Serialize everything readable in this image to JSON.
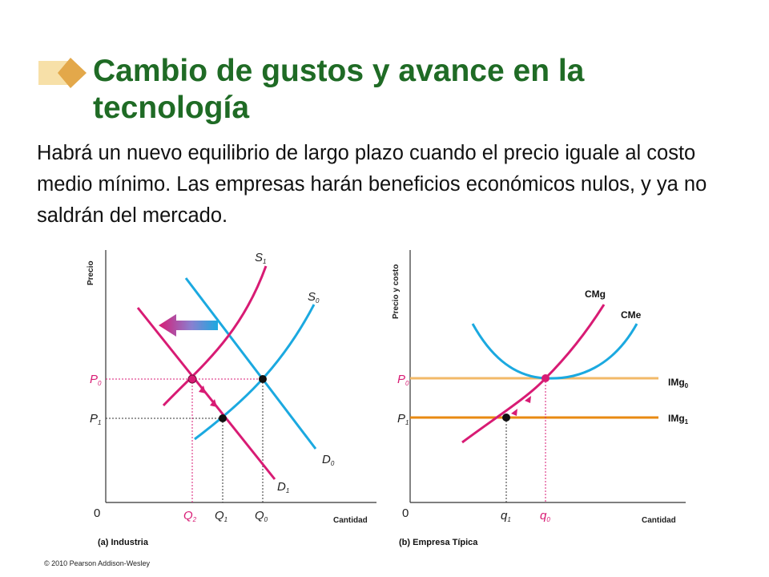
{
  "title": "Cambio de gustos y avance en la tecnología",
  "body": "Habrá un nuevo equilibrio de largo plazo cuando el precio iguale al costo medio mínimo. Las empresas harán beneficios económicos nulos, y ya no saldrán del mercado.",
  "copyright": "© 2010 Pearson Addison-Wesley",
  "colors": {
    "title": "#1f6b25",
    "magenta": "#d81b74",
    "cyan": "#1ba9e0",
    "orange_light": "#f2b968",
    "orange": "#e88a12"
  },
  "panel_a": {
    "caption": "(a) Industria",
    "y_axis": "Precio",
    "x_axis": "Cantidad",
    "origin": "0",
    "price_labels": {
      "p0": "P",
      "p0_sub": "0",
      "p1": "P",
      "p1_sub": "1"
    },
    "qty_labels": {
      "q2": "Q",
      "q2_sub": "2",
      "q1": "Q",
      "q1_sub": "1",
      "q0": "Q",
      "q0_sub": "0"
    },
    "curves": {
      "s1": "S",
      "s1_sub": "1",
      "s0": "S",
      "s0_sub": "0",
      "d0": "D",
      "d0_sub": "0",
      "d1": "D",
      "d1_sub": "1"
    }
  },
  "panel_b": {
    "caption": "(b) Empresa Típica",
    "y_axis": "Precio y costo",
    "x_axis": "Cantidad",
    "origin": "0",
    "price_labels": {
      "p0": "P",
      "p0_sub": "0",
      "p1": "P",
      "p1_sub": "1"
    },
    "qty_labels": {
      "q1": "q",
      "q1_sub": "1",
      "q0": "q",
      "q0_sub": "0"
    },
    "curves": {
      "cmg": "CMg",
      "cme": "CMe",
      "img0": "IMg",
      "img0_sub": "0",
      "img1": "IMg",
      "img1_sub": "1"
    }
  }
}
